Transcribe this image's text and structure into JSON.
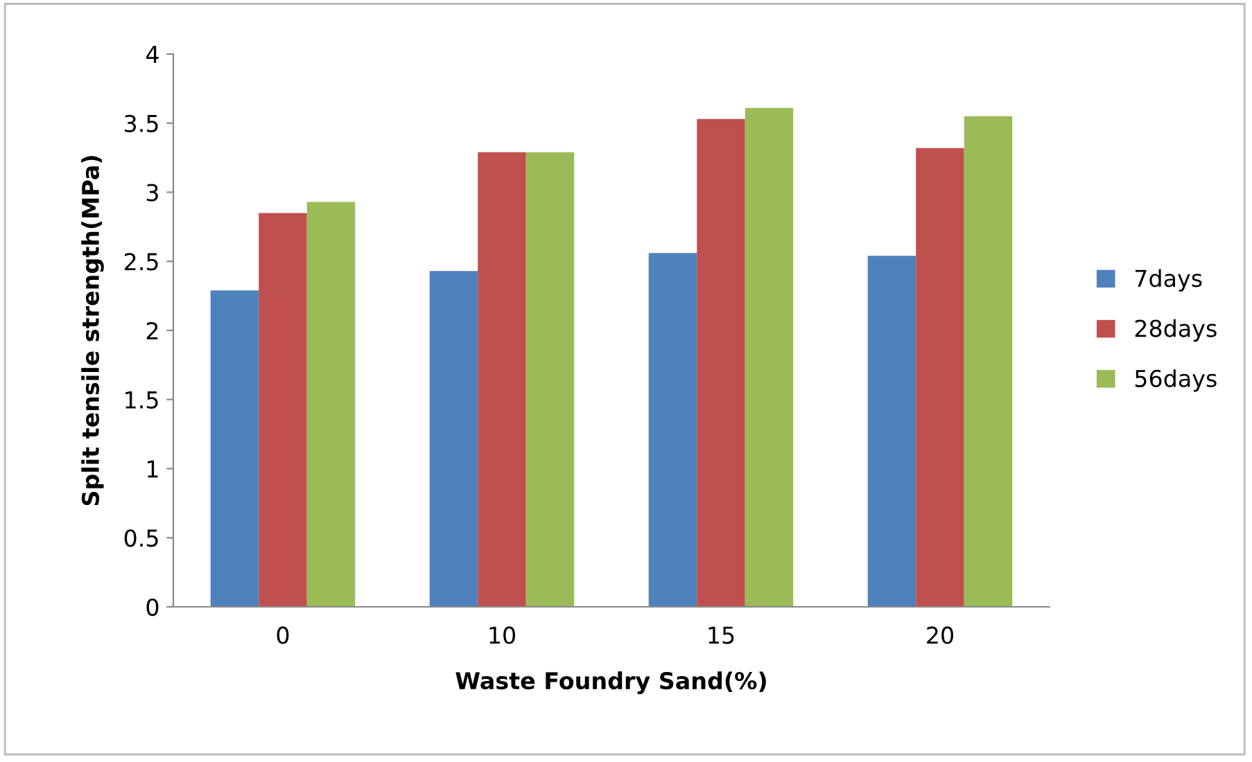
{
  "chart_data": {
    "type": "bar",
    "xlabel": "Waste Foundry Sand(%)",
    "ylabel": "Split tensile strength(MPa)",
    "categories": [
      "0",
      "10",
      "15",
      "20"
    ],
    "series": [
      {
        "name": "7days",
        "color": "#4f81bd",
        "values": [
          2.29,
          2.43,
          2.56,
          2.54
        ]
      },
      {
        "name": "28days",
        "color": "#c0504d",
        "values": [
          2.85,
          3.29,
          3.53,
          3.32
        ]
      },
      {
        "name": "56days",
        "color": "#9bbb59",
        "values": [
          2.93,
          3.29,
          3.61,
          3.55
        ]
      }
    ],
    "ylim": [
      0,
      4
    ],
    "yticks": [
      0,
      0.5,
      1,
      1.5,
      2,
      2.5,
      3,
      3.5,
      4
    ],
    "grid": false,
    "legend": "right"
  }
}
